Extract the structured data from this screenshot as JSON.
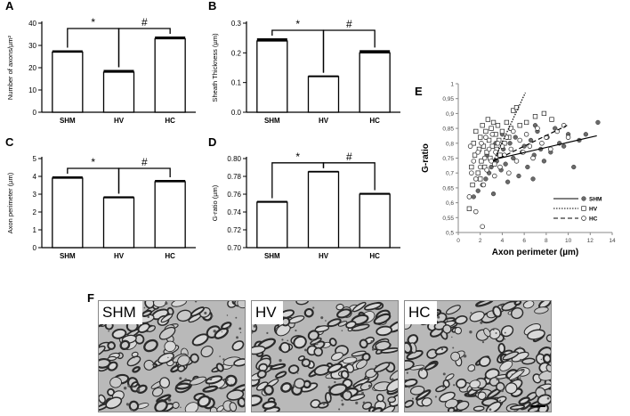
{
  "figure": {
    "panel_letters": [
      "A",
      "B",
      "C",
      "D",
      "E",
      "F"
    ]
  },
  "chart_data": [
    {
      "panel": "A",
      "type": "bar",
      "categories": [
        "SHM",
        "HV",
        "HC"
      ],
      "values": [
        27,
        18,
        33
      ],
      "errors": [
        0.8,
        1.0,
        1.0
      ],
      "ylabel": "Number of axons/µm²",
      "ylim": [
        0,
        40
      ],
      "yticks": [
        0,
        10,
        20,
        30,
        40
      ],
      "ytick_labels": [
        "0",
        "10",
        "20",
        "30",
        "40"
      ],
      "significance": [
        {
          "from": 0,
          "to": 1,
          "label": "*"
        },
        {
          "from": 1,
          "to": 2,
          "label": "#"
        }
      ]
    },
    {
      "panel": "B",
      "type": "bar",
      "categories": [
        "SHM",
        "HV",
        "HC"
      ],
      "values": [
        0.24,
        0.12,
        0.2
      ],
      "errors": [
        0.009,
        0.004,
        0.009
      ],
      "ylabel": "Sheath Thickness (µm)",
      "ylim": [
        0,
        0.3
      ],
      "yticks": [
        0,
        0.1,
        0.2,
        0.3
      ],
      "ytick_labels": [
        "0.0",
        "0.1",
        "0.2",
        "0.3"
      ],
      "significance": [
        {
          "from": 0,
          "to": 1,
          "label": "*"
        },
        {
          "from": 1,
          "to": 2,
          "label": "#"
        }
      ]
    },
    {
      "panel": "C",
      "type": "bar",
      "categories": [
        "SHM",
        "HV",
        "HC"
      ],
      "values": [
        3.9,
        2.8,
        3.7
      ],
      "errors": [
        0.1,
        0.08,
        0.1
      ],
      "ylabel": "Axon perimeter (µm)",
      "ylim": [
        0,
        5
      ],
      "yticks": [
        0,
        1,
        2,
        3,
        4,
        5
      ],
      "ytick_labels": [
        "0",
        "1",
        "2",
        "3",
        "4",
        "5"
      ],
      "significance": [
        {
          "from": 0,
          "to": 1,
          "label": "*"
        },
        {
          "from": 1,
          "to": 2,
          "label": "#"
        }
      ]
    },
    {
      "panel": "D",
      "type": "bar",
      "categories": [
        "SHM",
        "HV",
        "HC"
      ],
      "values": [
        0.751,
        0.785,
        0.76
      ],
      "errors": [
        0.0015,
        0.0012,
        0.0015
      ],
      "ylabel": "G-ratio (µm)",
      "ylim": [
        0.7,
        0.8
      ],
      "yticks": [
        0.7,
        0.72,
        0.74,
        0.76,
        0.78,
        0.8
      ],
      "ytick_labels": [
        "0.70",
        "0.72",
        "0.74",
        "0.76",
        "0.78",
        "0.80"
      ],
      "significance": [
        {
          "from": 0,
          "to": 1,
          "label": "*"
        },
        {
          "from": 1,
          "to": 2,
          "label": "#"
        }
      ]
    },
    {
      "panel": "E",
      "type": "scatter",
      "xlabel": "Axon perimeter (µm)",
      "ylabel": "G-ratio",
      "xlim": [
        0,
        14
      ],
      "ylim": [
        0.5,
        1.0
      ],
      "xticks": [
        0,
        2,
        4,
        6,
        8,
        10,
        12,
        14
      ],
      "xtick_labels": [
        "0",
        "2",
        "4",
        "6",
        "8",
        "10",
        "12",
        "14"
      ],
      "yticks": [
        0.5,
        0.55,
        0.6,
        0.65,
        0.7,
        0.75,
        0.8,
        0.85,
        0.9,
        0.95,
        1.0
      ],
      "ytick_labels": [
        "0,5",
        "0,55",
        "0,6",
        "0,65",
        "0,7",
        "0,75",
        "0,8",
        "0,85",
        "0,9",
        "0,95",
        "1"
      ],
      "legend_position": "bottom-right",
      "series": [
        {
          "name": "SHM",
          "marker": "filled-circle",
          "line": "solid",
          "color": "#666666",
          "fit": {
            "x": [
              3.2,
              12.6
            ],
            "y": [
              0.745,
              0.825
            ]
          },
          "points": [
            [
              1.4,
              0.62
            ],
            [
              1.8,
              0.64
            ],
            [
              2.2,
              0.66
            ],
            [
              2.5,
              0.68
            ],
            [
              2.8,
              0.7
            ],
            [
              3.0,
              0.72
            ],
            [
              3.2,
              0.63
            ],
            [
              3.5,
              0.74
            ],
            [
              3.7,
              0.76
            ],
            [
              3.9,
              0.71
            ],
            [
              4.1,
              0.78
            ],
            [
              4.3,
              0.73
            ],
            [
              4.5,
              0.67
            ],
            [
              4.7,
              0.8
            ],
            [
              5.0,
              0.75
            ],
            [
              5.2,
              0.82
            ],
            [
              5.5,
              0.69
            ],
            [
              5.8,
              0.77
            ],
            [
              6.0,
              0.79
            ],
            [
              6.3,
              0.72
            ],
            [
              6.6,
              0.81
            ],
            [
              6.9,
              0.76
            ],
            [
              7.2,
              0.84
            ],
            [
              7.5,
              0.78
            ],
            [
              7.8,
              0.74
            ],
            [
              8.1,
              0.82
            ],
            [
              8.4,
              0.77
            ],
            [
              8.8,
              0.85
            ],
            [
              9.2,
              0.8
            ],
            [
              9.6,
              0.79
            ],
            [
              10.0,
              0.83
            ],
            [
              10.5,
              0.72
            ],
            [
              11.0,
              0.81
            ],
            [
              11.6,
              0.83
            ],
            [
              12.7,
              0.87
            ],
            [
              3.4,
              0.8
            ],
            [
              4.0,
              0.83
            ],
            [
              2.6,
              0.76
            ],
            [
              6.8,
              0.68
            ],
            [
              7.0,
              0.86
            ]
          ]
        },
        {
          "name": "HV",
          "marker": "open-square",
          "line": "dotted",
          "color": "#000000",
          "fit": {
            "x": [
              3.2,
              6.1
            ],
            "y": [
              0.74,
              0.97
            ]
          },
          "points": [
            [
              1.0,
              0.58
            ],
            [
              1.2,
              0.72
            ],
            [
              1.4,
              0.8
            ],
            [
              1.5,
              0.76
            ],
            [
              1.6,
              0.84
            ],
            [
              1.8,
              0.7
            ],
            [
              1.9,
              0.78
            ],
            [
              2.0,
              0.82
            ],
            [
              2.1,
              0.74
            ],
            [
              2.2,
              0.86
            ],
            [
              2.3,
              0.79
            ],
            [
              2.4,
              0.72
            ],
            [
              2.5,
              0.84
            ],
            [
              2.6,
              0.77
            ],
            [
              2.7,
              0.88
            ],
            [
              2.8,
              0.81
            ],
            [
              2.9,
              0.75
            ],
            [
              3.0,
              0.85
            ],
            [
              3.1,
              0.79
            ],
            [
              3.2,
              0.87
            ],
            [
              3.3,
              0.73
            ],
            [
              3.4,
              0.83
            ],
            [
              3.5,
              0.78
            ],
            [
              3.6,
              0.86
            ],
            [
              3.7,
              0.81
            ],
            [
              3.8,
              0.76
            ],
            [
              4.0,
              0.84
            ],
            [
              4.2,
              0.8
            ],
            [
              4.4,
              0.87
            ],
            [
              4.6,
              0.82
            ],
            [
              4.8,
              0.85
            ],
            [
              5.0,
              0.91
            ],
            [
              5.3,
              0.92
            ],
            [
              5.6,
              0.86
            ],
            [
              6.2,
              0.87
            ],
            [
              7.0,
              0.89
            ],
            [
              7.8,
              0.9
            ],
            [
              8.5,
              0.88
            ],
            [
              1.3,
              0.66
            ],
            [
              2.0,
              0.68
            ]
          ]
        },
        {
          "name": "HC",
          "marker": "open-circle",
          "line": "dashed",
          "color": "#000000",
          "fit": {
            "x": [
              3.2,
              9.9
            ],
            "y": [
              0.74,
              0.86
            ]
          },
          "points": [
            [
              1.0,
              0.62
            ],
            [
              1.2,
              0.7
            ],
            [
              1.4,
              0.74
            ],
            [
              1.6,
              0.68
            ],
            [
              1.8,
              0.77
            ],
            [
              2.0,
              0.72
            ],
            [
              2.1,
              0.8
            ],
            [
              2.3,
              0.66
            ],
            [
              2.4,
              0.75
            ],
            [
              2.5,
              0.82
            ],
            [
              2.6,
              0.71
            ],
            [
              2.8,
              0.78
            ],
            [
              3.0,
              0.74
            ],
            [
              3.1,
              0.83
            ],
            [
              3.3,
              0.69
            ],
            [
              3.4,
              0.77
            ],
            [
              3.6,
              0.8
            ],
            [
              3.8,
              0.72
            ],
            [
              4.0,
              0.79
            ],
            [
              4.2,
              0.76
            ],
            [
              4.4,
              0.82
            ],
            [
              4.6,
              0.7
            ],
            [
              4.8,
              0.78
            ],
            [
              5.0,
              0.84
            ],
            [
              5.3,
              0.74
            ],
            [
              5.6,
              0.81
            ],
            [
              5.9,
              0.77
            ],
            [
              6.2,
              0.83
            ],
            [
              6.5,
              0.79
            ],
            [
              6.8,
              0.75
            ],
            [
              7.2,
              0.85
            ],
            [
              7.6,
              0.8
            ],
            [
              8.0,
              0.82
            ],
            [
              8.4,
              0.78
            ],
            [
              9.0,
              0.84
            ],
            [
              9.6,
              0.86
            ],
            [
              10.0,
              0.82
            ],
            [
              1.6,
              0.57
            ],
            [
              2.2,
              0.52
            ],
            [
              1.1,
              0.79
            ]
          ]
        }
      ]
    }
  ],
  "micrographs": [
    {
      "label": "SHM"
    },
    {
      "label": "HV"
    },
    {
      "label": "HC"
    }
  ]
}
